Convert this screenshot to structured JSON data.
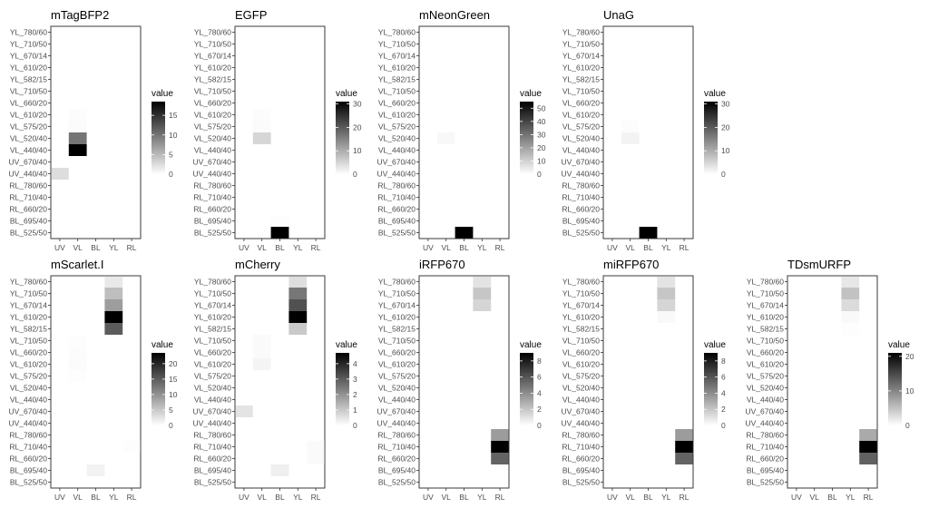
{
  "chart_data": {
    "type": "heatmap",
    "layout": "2 rows: 4 panels on top, 5 panels on bottom",
    "x_categories": [
      "UV",
      "VL",
      "BL",
      "YL",
      "RL"
    ],
    "y_categories_top_to_bottom": [
      "YL_780/60",
      "YL_710/50",
      "YL_670/14",
      "YL_610/20",
      "YL_582/15",
      "VL_710/50",
      "VL_660/20",
      "VL_610/20",
      "VL_575/20",
      "VL_520/40",
      "VL_440/40",
      "UV_670/40",
      "UV_440/40",
      "RL_780/60",
      "RL_710/40",
      "RL_660/20",
      "BL_695/40",
      "BL_525/50"
    ],
    "color_scale": {
      "low": "#ffffff",
      "high": "#000000"
    },
    "legend_title": "value",
    "panels": [
      {
        "title": "mTagBFP2",
        "legend_ticks": [
          "0",
          "5",
          "10",
          "15"
        ],
        "legend_range": [
          0,
          18.5
        ],
        "cells": [
          {
            "x": "VL",
            "y": "VL_440/40",
            "value": 18.5
          },
          {
            "x": "VL",
            "y": "VL_520/40",
            "value": 10
          },
          {
            "x": "UV",
            "y": "UV_440/40",
            "value": 2.5
          },
          {
            "x": "VL",
            "y": "VL_575/20",
            "value": 0.3
          },
          {
            "x": "VL",
            "y": "VL_610/20",
            "value": 0.2
          }
        ]
      },
      {
        "title": "EGFP",
        "legend_ticks": [
          "0",
          "10",
          "20",
          "30"
        ],
        "legend_range": [
          0,
          31
        ],
        "cells": [
          {
            "x": "BL",
            "y": "BL_525/50",
            "value": 31
          },
          {
            "x": "VL",
            "y": "VL_520/40",
            "value": 5
          },
          {
            "x": "VL",
            "y": "VL_575/20",
            "value": 0.5
          },
          {
            "x": "VL",
            "y": "VL_610/20",
            "value": 0.4
          },
          {
            "x": "BL",
            "y": "BL_695/40",
            "value": 0.3
          }
        ]
      },
      {
        "title": "mNeonGreen",
        "legend_ticks": [
          "0",
          "10",
          "20",
          "30",
          "40",
          "50"
        ],
        "legend_range": [
          0,
          55
        ],
        "cells": [
          {
            "x": "BL",
            "y": "BL_525/50",
            "value": 55
          },
          {
            "x": "VL",
            "y": "VL_520/40",
            "value": 1.5
          }
        ]
      },
      {
        "title": "UnaG",
        "legend_ticks": [
          "0",
          "10",
          "20",
          "30"
        ],
        "legend_range": [
          0,
          31
        ],
        "cells": [
          {
            "x": "BL",
            "y": "BL_525/50",
            "value": 31
          },
          {
            "x": "VL",
            "y": "VL_520/40",
            "value": 1.5
          },
          {
            "x": "VL",
            "y": "VL_575/20",
            "value": 0.4
          }
        ]
      },
      {
        "title": "mScarlet.I",
        "legend_ticks": [
          "0",
          "5",
          "10",
          "15",
          "20"
        ],
        "legend_range": [
          0,
          23.5
        ],
        "cells": [
          {
            "x": "YL",
            "y": "YL_610/20",
            "value": 23.5
          },
          {
            "x": "YL",
            "y": "YL_582/15",
            "value": 15
          },
          {
            "x": "YL",
            "y": "YL_670/14",
            "value": 9
          },
          {
            "x": "YL",
            "y": "YL_710/50",
            "value": 6
          },
          {
            "x": "YL",
            "y": "YL_780/60",
            "value": 2
          },
          {
            "x": "BL",
            "y": "BL_695/40",
            "value": 1.2
          },
          {
            "x": "VL",
            "y": "VL_610/20",
            "value": 0.4
          },
          {
            "x": "VL",
            "y": "VL_660/20",
            "value": 0.3
          },
          {
            "x": "VL",
            "y": "VL_710/50",
            "value": 0.2
          },
          {
            "x": "VL",
            "y": "VL_575/20",
            "value": 0.2
          },
          {
            "x": "RL",
            "y": "RL_710/40",
            "value": 0.2
          }
        ]
      },
      {
        "title": "mCherry",
        "legend_ticks": [
          "0",
          "1",
          "2",
          "3",
          "4"
        ],
        "legend_range": [
          0,
          4.7
        ],
        "cells": [
          {
            "x": "YL",
            "y": "YL_610/20",
            "value": 4.7
          },
          {
            "x": "YL",
            "y": "YL_670/14",
            "value": 3.2
          },
          {
            "x": "YL",
            "y": "YL_710/50",
            "value": 2.5
          },
          {
            "x": "YL",
            "y": "YL_582/15",
            "value": 1.0
          },
          {
            "x": "YL",
            "y": "YL_780/60",
            "value": 0.6
          },
          {
            "x": "UV",
            "y": "UV_670/40",
            "value": 0.5
          },
          {
            "x": "BL",
            "y": "BL_695/40",
            "value": 0.3
          },
          {
            "x": "VL",
            "y": "VL_610/20",
            "value": 0.2
          },
          {
            "x": "VL",
            "y": "VL_660/20",
            "value": 0.1
          },
          {
            "x": "VL",
            "y": "VL_710/50",
            "value": 0.1
          },
          {
            "x": "RL",
            "y": "RL_710/40",
            "value": 0.1
          },
          {
            "x": "RL",
            "y": "RL_660/20",
            "value": 0.1
          }
        ]
      },
      {
        "title": "iRFP670",
        "legend_ticks": [
          "0",
          "2",
          "4",
          "6",
          "8"
        ],
        "legend_range": [
          0,
          9
        ],
        "cells": [
          {
            "x": "RL",
            "y": "RL_710/40",
            "value": 9
          },
          {
            "x": "RL",
            "y": "RL_660/20",
            "value": 5.5
          },
          {
            "x": "RL",
            "y": "RL_780/60",
            "value": 3.5
          },
          {
            "x": "YL",
            "y": "YL_710/50",
            "value": 2
          },
          {
            "x": "YL",
            "y": "YL_670/14",
            "value": 1.5
          },
          {
            "x": "YL",
            "y": "YL_780/60",
            "value": 1.0
          }
        ]
      },
      {
        "title": "miRFP670",
        "legend_ticks": [
          "0",
          "2",
          "4",
          "6",
          "8"
        ],
        "legend_range": [
          0,
          9
        ],
        "cells": [
          {
            "x": "RL",
            "y": "RL_710/40",
            "value": 9
          },
          {
            "x": "RL",
            "y": "RL_660/20",
            "value": 5.5
          },
          {
            "x": "RL",
            "y": "RL_780/60",
            "value": 3.5
          },
          {
            "x": "YL",
            "y": "YL_710/50",
            "value": 2
          },
          {
            "x": "YL",
            "y": "YL_670/14",
            "value": 1.5
          },
          {
            "x": "YL",
            "y": "YL_780/60",
            "value": 1.0
          },
          {
            "x": "YL",
            "y": "YL_610/20",
            "value": 0.2
          }
        ]
      },
      {
        "title": "TDsmURFP",
        "legend_ticks": [
          "0",
          "10",
          "20"
        ],
        "legend_range": [
          0,
          21
        ],
        "cells": [
          {
            "x": "RL",
            "y": "RL_710/40",
            "value": 21
          },
          {
            "x": "RL",
            "y": "RL_660/20",
            "value": 13
          },
          {
            "x": "RL",
            "y": "RL_780/60",
            "value": 7
          },
          {
            "x": "YL",
            "y": "YL_710/50",
            "value": 5
          },
          {
            "x": "YL",
            "y": "YL_670/14",
            "value": 3
          },
          {
            "x": "YL",
            "y": "YL_780/60",
            "value": 2
          },
          {
            "x": "YL",
            "y": "YL_610/20",
            "value": 0.5
          },
          {
            "x": "YL",
            "y": "YL_582/15",
            "value": 0.2
          }
        ]
      }
    ]
  }
}
